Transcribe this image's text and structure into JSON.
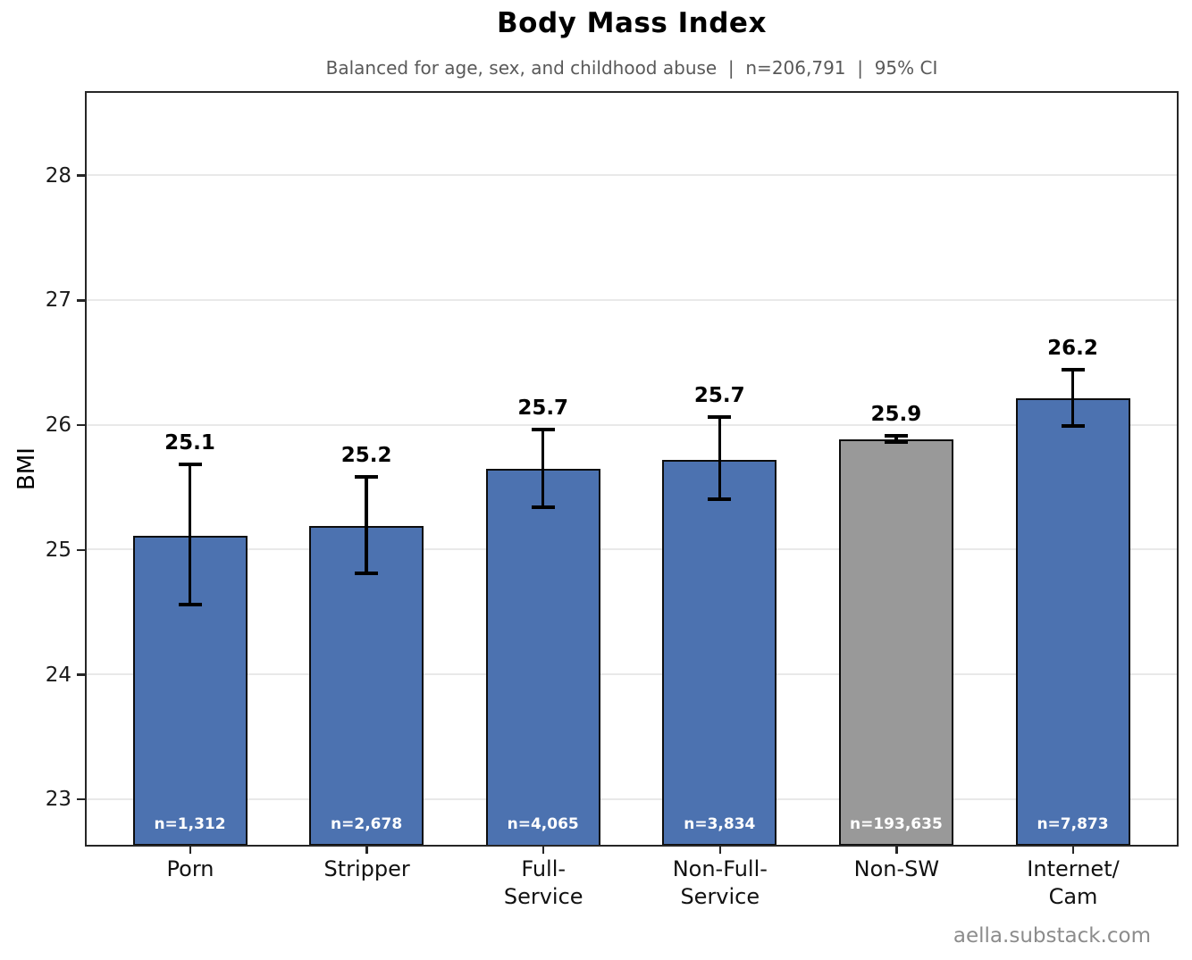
{
  "header": {
    "title": "Body Mass Index",
    "subtitle": "Balanced for age, sex, and childhood abuse  |  n=206,791  |  95% CI"
  },
  "footer": {
    "credit": "aella.substack.com"
  },
  "chart_data": {
    "type": "bar",
    "title": "Body Mass Index",
    "subtitle": "Balanced for age, sex, and childhood abuse | n=206,791 | 95% CI",
    "xlabel": "",
    "ylabel": "BMI",
    "ylim": [
      22.64,
      28.66
    ],
    "yticks": [
      23,
      24,
      25,
      26,
      27,
      28
    ],
    "grid": true,
    "error_bar_meaning": "95% CI",
    "legend": "none",
    "categories": [
      "Porn",
      "Stripper",
      "Full-Service",
      "Non-Full-Service",
      "Non-SW",
      "Internet/Cam"
    ],
    "category_label_lines": [
      [
        "Porn"
      ],
      [
        "Stripper"
      ],
      [
        "Full-",
        "Service"
      ],
      [
        "Non-Full-",
        "Service"
      ],
      [
        "Non-SW"
      ],
      [
        "Internet/",
        "Cam"
      ]
    ],
    "values": [
      25.11,
      25.19,
      25.65,
      25.72,
      25.88,
      26.21
    ],
    "value_labels": [
      "25.1",
      "25.2",
      "25.7",
      "25.7",
      "25.9",
      "26.2"
    ],
    "ci_low": [
      24.56,
      24.81,
      25.34,
      25.4,
      25.86,
      25.99
    ],
    "ci_high": [
      25.68,
      25.58,
      25.96,
      26.06,
      25.91,
      26.44
    ],
    "n_labels": [
      "n=1,312",
      "n=2,678",
      "n=4,065",
      "n=3,834",
      "n=193,635",
      "n=7,873"
    ],
    "bar_colors": [
      "#4C72B0",
      "#4C72B0",
      "#4C72B0",
      "#4C72B0",
      "#999999",
      "#4C72B0"
    ],
    "colors": {
      "bar_blue": "#4C72B0",
      "bar_gray": "#999999",
      "bar_edge": "#0d0d0d",
      "error_bar": "#000000",
      "gridline": "#e9e9e9",
      "spine": "#262626",
      "subtitle_text": "#595959",
      "footer_text": "#8c8c8c",
      "n_label_text": "#ffffff"
    }
  }
}
